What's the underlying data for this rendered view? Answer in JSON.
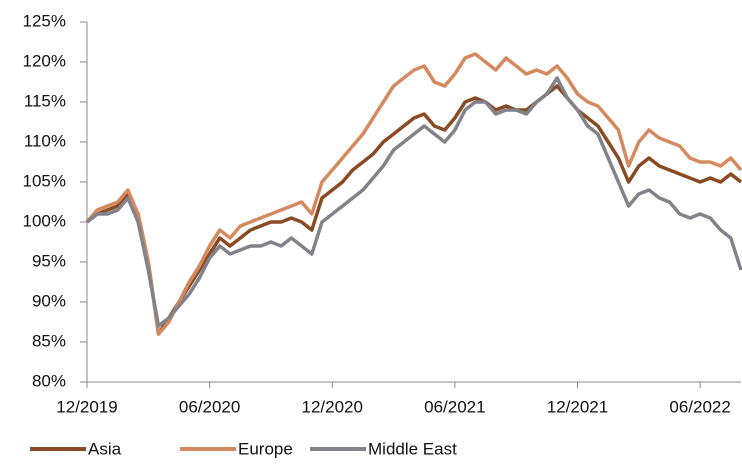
{
  "chart_data": {
    "type": "line",
    "categories": [
      "12/2019",
      null,
      null,
      null,
      null,
      null,
      null,
      null,
      null,
      null,
      null,
      null,
      "06/2020",
      null,
      null,
      null,
      null,
      null,
      null,
      null,
      null,
      null,
      null,
      null,
      "12/2020",
      null,
      null,
      null,
      null,
      null,
      null,
      null,
      null,
      null,
      null,
      null,
      "06/2021",
      null,
      null,
      null,
      null,
      null,
      null,
      null,
      null,
      null,
      null,
      null,
      "12/2021",
      null,
      null,
      null,
      null,
      null,
      null,
      null,
      null,
      null,
      null,
      null,
      "06/2022",
      null,
      null,
      null,
      null
    ],
    "series": [
      {
        "name": "Asia",
        "color": "#8a4a24",
        "values": [
          100,
          101,
          101.5,
          102,
          103.5,
          101,
          95,
          86,
          88,
          90,
          92,
          94,
          96,
          98,
          97,
          98,
          99,
          99.5,
          100,
          100,
          100.5,
          100,
          99,
          103,
          104,
          105,
          106.5,
          107.5,
          108.5,
          110,
          111,
          112,
          113,
          113.5,
          112,
          111.5,
          113,
          115,
          115.5,
          115,
          114,
          114.5,
          114,
          114,
          115,
          116,
          117,
          115.5,
          114,
          113,
          112,
          110,
          108,
          105,
          107,
          108,
          107,
          106.5,
          106,
          105.5,
          105,
          105.5,
          105,
          106,
          105
        ]
      },
      {
        "name": "Europe",
        "color": "#d48a5e",
        "values": [
          100,
          101.5,
          102,
          102.5,
          104,
          101,
          95,
          86,
          87.5,
          90,
          92.5,
          94.5,
          97,
          99,
          98,
          99.5,
          100,
          100.5,
          101,
          101.5,
          102,
          102.5,
          101,
          105,
          106.5,
          108,
          109.5,
          111,
          113,
          115,
          117,
          118,
          119,
          119.5,
          117.5,
          117,
          118.5,
          120.5,
          121,
          120,
          119,
          120.5,
          119.5,
          118.5,
          119,
          118.5,
          119.5,
          118,
          116,
          115,
          114.5,
          113,
          111.5,
          107,
          110,
          111.5,
          110.5,
          110,
          109.5,
          108,
          107.5,
          107.5,
          107,
          108,
          106.5
        ]
      },
      {
        "name": "Middle East",
        "color": "#82828a",
        "values": [
          100,
          101,
          101,
          101.5,
          103,
          100,
          94,
          87,
          88,
          89.5,
          91,
          93,
          95.5,
          97,
          96,
          96.5,
          97,
          97,
          97.5,
          97,
          98,
          97,
          96,
          100,
          101,
          102,
          103,
          104,
          105.5,
          107,
          109,
          110,
          111,
          112,
          111,
          110,
          111.5,
          114,
          115,
          115,
          113.5,
          114,
          114,
          113.5,
          115,
          116,
          118,
          115.5,
          114,
          112,
          111,
          108,
          105,
          102,
          103.5,
          104,
          103,
          102.5,
          101,
          100.5,
          101,
          100.5,
          99,
          98,
          94
        ]
      }
    ],
    "ylim": [
      80,
      125
    ],
    "yticks": [
      {
        "value": 80,
        "label": "80%"
      },
      {
        "value": 85,
        "label": "85%"
      },
      {
        "value": 90,
        "label": "90%"
      },
      {
        "value": 95,
        "label": "95%"
      },
      {
        "value": 100,
        "label": "100%"
      },
      {
        "value": 105,
        "label": "105%"
      },
      {
        "value": 110,
        "label": "110%"
      },
      {
        "value": 115,
        "label": "115%"
      },
      {
        "value": 120,
        "label": "120%"
      },
      {
        "value": 125,
        "label": "125%"
      }
    ],
    "grid": false,
    "legend": "bottom"
  }
}
